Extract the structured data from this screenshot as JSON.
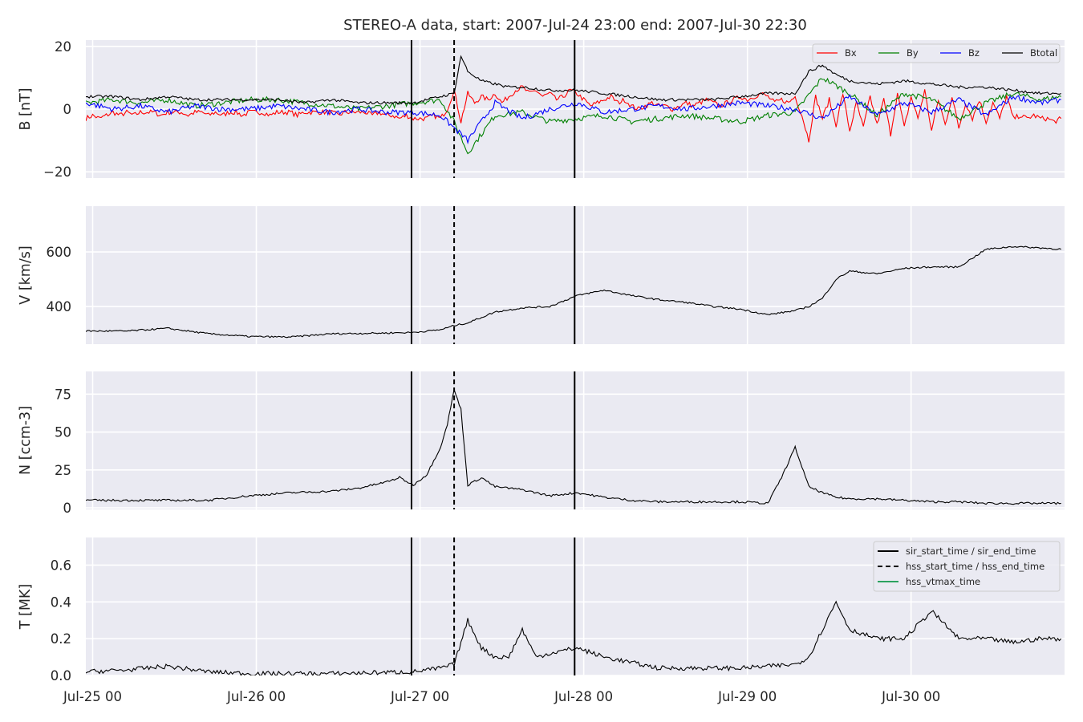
{
  "chart_data": {
    "type": "line",
    "title": "STEREO-A data, start: 2007-Jul-24 23:00  end: 2007-Jul-30 22:30",
    "x_axis": {
      "unit": "datetime",
      "range": [
        "2007-07-24 23:00",
        "2007-07-30 22:30"
      ],
      "tick_labels": [
        "Jul-25 00",
        "Jul-26 00",
        "Jul-27 00",
        "Jul-28 00",
        "Jul-29 00",
        "Jul-30 00"
      ],
      "tick_values": [
        "2007-07-25 00:00",
        "2007-07-26 00:00",
        "2007-07-27 00:00",
        "2007-07-28 00:00",
        "2007-07-29 00:00",
        "2007-07-30 00:00"
      ]
    },
    "event_lines": [
      {
        "time": "2007-07-26 22:45",
        "style": "solid",
        "kind": "sir_start_time"
      },
      {
        "time": "2007-07-27 05:00",
        "style": "dashed",
        "kind": "hss_start_time"
      },
      {
        "time": "2007-07-27 22:40",
        "style": "solid",
        "kind": "sir_end_time"
      }
    ],
    "legend_events": {
      "location": "upper right",
      "entries": [
        "sir_start_time / sir_end_time",
        "hss_start_time / hss_end_time",
        "hss_vtmax_time"
      ]
    },
    "panels": [
      {
        "ylabel": "B [nT]",
        "ylim": [
          -22,
          22
        ],
        "yticks": [
          20,
          0,
          -20
        ],
        "ytick_labels": [
          "20",
          "0",
          "−20"
        ],
        "legend": {
          "location": "upper right",
          "ncol": 4
        },
        "series": [
          {
            "name": "Bx",
            "color": "#ff0000",
            "t": [
              0,
              1,
              2,
              3,
              4,
              5,
              6,
              7,
              8,
              9,
              10,
              11,
              12,
              13,
              14,
              15,
              16,
              17,
              18,
              19,
              20,
              21,
              22,
              23,
              24,
              25,
              26,
              27,
              28,
              29,
              30,
              31,
              32,
              33,
              34,
              35,
              36,
              37,
              38,
              39,
              40,
              41,
              42,
              43,
              44,
              45,
              46,
              47,
              48,
              49,
              50,
              51,
              52,
              53,
              54,
              55,
              56,
              57,
              58,
              59,
              60,
              61,
              62,
              63,
              64,
              65,
              66,
              67,
              68,
              69,
              70,
              71,
              72,
              73,
              74,
              75,
              76,
              77,
              78,
              79,
              80,
              81,
              82,
              83,
              84,
              85,
              86,
              87,
              88,
              89,
              90,
              91,
              92,
              93,
              94,
              95,
              96,
              97,
              98,
              99,
              100,
              101,
              102,
              103,
              104,
              105,
              106,
              107,
              108,
              109,
              110,
              111,
              112,
              113,
              114,
              115,
              116,
              117,
              118,
              119,
              120,
              121,
              122,
              123,
              124,
              125,
              126,
              127,
              128,
              129,
              130,
              131,
              132,
              133,
              134,
              135,
              136,
              137,
              138,
              139,
              140,
              141,
              142,
              143
            ],
            "v": [
              -3,
              -2,
              -3,
              -2,
              -1,
              -2,
              -1,
              -2,
              -1,
              -1,
              -1,
              -2,
              -1,
              -1,
              -1,
              -2,
              -1,
              -1,
              -2,
              -1,
              -2,
              -1,
              -1,
              -2,
              -1,
              -1,
              -1,
              -2,
              -1,
              -1,
              -1,
              -2,
              -1,
              -1,
              -1,
              -1,
              -1,
              -2,
              -1,
              -1,
              -1,
              -1,
              -2,
              -1,
              -2,
              -2,
              -3,
              -2,
              -3,
              -3,
              -3,
              -2,
              -3,
              0,
              6,
              -4,
              5,
              2,
              4,
              3,
              5,
              2,
              4,
              6,
              7,
              5,
              6,
              4,
              5,
              3,
              4,
              6,
              5,
              3,
              1,
              2,
              3,
              4,
              2,
              3,
              1,
              0,
              1,
              2,
              1,
              1,
              0,
              1,
              2,
              1,
              2,
              3,
              2,
              1,
              2,
              3,
              4,
              3,
              4,
              5,
              4,
              2,
              3,
              2,
              4,
              -2,
              -10,
              4,
              -3,
              3,
              -5,
              5,
              -7,
              2,
              -6,
              4,
              -5,
              3,
              -8,
              5,
              -6,
              4,
              -3,
              6,
              -7,
              3,
              -5,
              4,
              -6,
              2,
              -3,
              3,
              -4,
              2,
              -3,
              4,
              -3,
              -2,
              -3,
              -2,
              -3,
              -3,
              -4,
              -3,
              -3,
              -3
            ],
            "note": "t = hours since 2007-07-24 23:00 (approx. hourly trace)"
          },
          {
            "name": "By",
            "color": "#008000",
            "t": [
              0,
              4,
              8,
              12,
              16,
              20,
              24,
              28,
              32,
              36,
              40,
              44,
              48,
              52,
              54,
              56,
              60,
              64,
              68,
              72,
              76,
              80,
              84,
              88,
              92,
              96,
              100,
              104,
              108,
              112,
              116,
              120,
              124,
              128,
              132,
              136,
              140,
              143
            ],
            "v": [
              2,
              3,
              2,
              3,
              1,
              2,
              3,
              3,
              2,
              1,
              0,
              1,
              2,
              3,
              -4,
              -14,
              -2,
              -1,
              -4,
              -3,
              -2,
              -4,
              -3,
              -2,
              -3,
              -4,
              -2,
              -1,
              10,
              5,
              -2,
              5,
              3,
              -3,
              2,
              5,
              3,
              4
            ]
          },
          {
            "name": "Bz",
            "color": "#0000ff",
            "t": [
              0,
              4,
              8,
              12,
              16,
              20,
              24,
              28,
              32,
              36,
              40,
              44,
              48,
              52,
              54,
              56,
              60,
              64,
              68,
              72,
              76,
              80,
              84,
              88,
              92,
              96,
              100,
              104,
              108,
              112,
              116,
              120,
              124,
              128,
              132,
              136,
              140,
              143
            ],
            "v": [
              2,
              0,
              1,
              -1,
              1,
              0,
              0,
              1,
              0,
              -1,
              0,
              -1,
              -1,
              -2,
              -6,
              -10,
              2,
              -3,
              0,
              2,
              -1,
              0,
              1,
              0,
              1,
              2,
              1,
              0,
              -3,
              4,
              -2,
              2,
              -1,
              3,
              -2,
              4,
              2,
              3
            ]
          },
          {
            "name": "Btotal",
            "color": "#000000",
            "t": [
              0,
              4,
              8,
              12,
              16,
              20,
              24,
              28,
              32,
              36,
              40,
              44,
              48,
              50,
              52,
              54,
              55,
              56,
              58,
              60,
              62,
              64,
              68,
              72,
              76,
              80,
              84,
              88,
              92,
              96,
              100,
              104,
              106,
              108,
              110,
              112,
              116,
              120,
              124,
              128,
              132,
              136,
              140,
              143
            ],
            "v": [
              4,
              4,
              3,
              4,
              3,
              3,
              3,
              3,
              2,
              3,
              2,
              2,
              2,
              3,
              4,
              5,
              17,
              12,
              9,
              8,
              7,
              7,
              6,
              6,
              5,
              4,
              3,
              3,
              3,
              4,
              5,
              5,
              12,
              14,
              11,
              9,
              8,
              9,
              8,
              7,
              7,
              6,
              5,
              5
            ]
          }
        ]
      },
      {
        "ylabel": "V [km/s]",
        "ylim": [
          262,
          768
        ],
        "yticks": [
          400,
          600
        ],
        "ytick_labels": [
          "400",
          "600"
        ],
        "series": [
          {
            "name": "",
            "color": "#000000",
            "t": [
              0,
              6,
              12,
              18,
              24,
              30,
              36,
              42,
              48,
              52,
              54,
              56,
              60,
              64,
              68,
              72,
              76,
              80,
              84,
              88,
              92,
              96,
              100,
              104,
              106,
              108,
              110,
              112,
              116,
              120,
              124,
              128,
              132,
              136,
              140,
              143
            ],
            "v": [
              310,
              310,
              320,
              300,
              290,
              288,
              300,
              302,
              305,
              315,
              330,
              340,
              380,
              395,
              400,
              440,
              460,
              440,
              425,
              415,
              400,
              390,
              370,
              385,
              400,
              430,
              500,
              530,
              520,
              540,
              545,
              545,
              610,
              620,
              615,
              610
            ]
          }
        ]
      },
      {
        "ylabel": "N [ccm-3]",
        "ylim": [
          -1,
          90
        ],
        "yticks": [
          0,
          25,
          50,
          75
        ],
        "ytick_labels": [
          "0",
          "25",
          "50",
          "75"
        ],
        "series": [
          {
            "name": "",
            "color": "#000000",
            "t": [
              0,
              6,
              12,
              18,
              24,
              30,
              36,
              40,
              44,
              46,
              48,
              50,
              52,
              53,
              54,
              55,
              56,
              58,
              60,
              64,
              68,
              72,
              76,
              80,
              84,
              88,
              92,
              96,
              100,
              102,
              104,
              106,
              108,
              110,
              112,
              116,
              120,
              124,
              128,
              132,
              136,
              140,
              143
            ],
            "v": [
              5,
              5,
              5,
              5,
              8,
              10,
              11,
              13,
              17,
              20,
              15,
              22,
              40,
              55,
              78,
              65,
              15,
              20,
              14,
              12,
              8,
              10,
              7,
              5,
              4,
              4,
              4,
              4,
              3,
              20,
              40,
              14,
              10,
              7,
              6,
              6,
              5,
              4,
              4,
              3,
              3,
              3,
              3
            ]
          }
        ]
      },
      {
        "ylabel": "T [MK]",
        "ylim": [
          0,
          0.75
        ],
        "yticks": [
          0.0,
          0.2,
          0.4,
          0.6
        ],
        "ytick_labels": [
          "0.0",
          "0.2",
          "0.4",
          "0.6"
        ],
        "series": [
          {
            "name": "",
            "color": "#000000",
            "t": [
              0,
              6,
              12,
              18,
              24,
              30,
              36,
              42,
              48,
              52,
              54,
              56,
              58,
              60,
              62,
              64,
              66,
              68,
              72,
              76,
              80,
              84,
              88,
              92,
              96,
              100,
              104,
              106,
              108,
              110,
              112,
              116,
              120,
              124,
              128,
              132,
              136,
              140,
              143
            ],
            "v": [
              0.02,
              0.03,
              0.05,
              0.02,
              0.01,
              0.01,
              0.01,
              0.015,
              0.02,
              0.04,
              0.06,
              0.3,
              0.15,
              0.1,
              0.1,
              0.25,
              0.1,
              0.12,
              0.15,
              0.1,
              0.07,
              0.04,
              0.04,
              0.04,
              0.04,
              0.05,
              0.06,
              0.1,
              0.25,
              0.4,
              0.25,
              0.2,
              0.2,
              0.35,
              0.2,
              0.2,
              0.18,
              0.2,
              0.2
            ]
          }
        ]
      }
    ]
  }
}
